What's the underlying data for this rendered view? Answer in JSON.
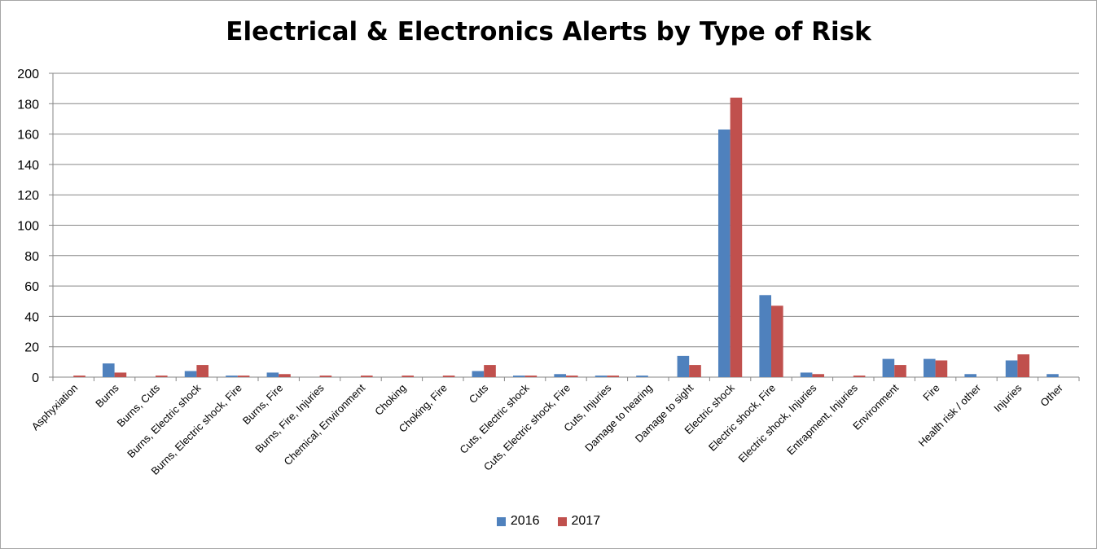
{
  "chart_data": {
    "type": "bar",
    "title": "Electrical & Electronics Alerts by Type of Risk",
    "xlabel": "",
    "ylabel": "",
    "ylim": [
      0,
      200
    ],
    "yticks": [
      "0",
      "20",
      "40",
      "60",
      "80",
      "100",
      "120",
      "140",
      "160",
      "180",
      "200"
    ],
    "grid": true,
    "legend_position": "bottom",
    "categories": [
      "Asphyxiation",
      "Burns",
      "Burns, Cuts",
      "Burns, Electric shock",
      "Burns, Electric shock, Fire",
      "Burns, Fire",
      "Burns, Fire, Injuries",
      "Chemical, Environment",
      "Choking",
      "Choking, Fire",
      "Cuts",
      "Cuts, Electric shock",
      "Cuts, Electric shock, Fire",
      "Cuts, Injuries",
      "Damage to hearing",
      "Damage to sight",
      "Electric shock",
      "Electric shock, Fire",
      "Electric shock, Injuries",
      "Entrapment, Injuries",
      "Environment",
      "Fire",
      "Health risk / other",
      "Injuries",
      "Other"
    ],
    "series": [
      {
        "name": "2016",
        "color": "#4f81bd",
        "values": [
          0,
          9,
          0,
          4,
          1,
          3,
          0,
          0,
          0,
          0,
          4,
          1,
          2,
          1,
          1,
          14,
          163,
          54,
          3,
          0,
          12,
          12,
          2,
          11,
          2
        ]
      },
      {
        "name": "2017",
        "color": "#c0504d",
        "values": [
          1,
          3,
          1,
          8,
          1,
          2,
          1,
          1,
          1,
          1,
          8,
          1,
          1,
          1,
          0,
          8,
          184,
          47,
          2,
          1,
          8,
          11,
          0,
          15,
          0
        ]
      }
    ]
  }
}
